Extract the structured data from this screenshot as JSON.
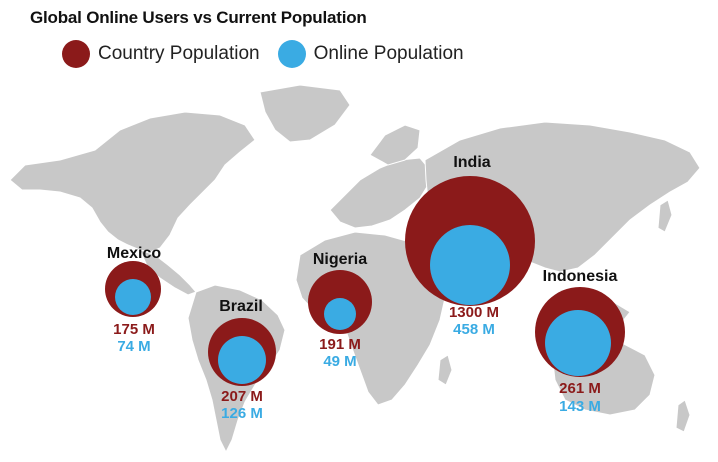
{
  "title": "Global Online Users vs Current Population",
  "legend": [
    {
      "label": "Country Population",
      "color": "#8B1A1A"
    },
    {
      "label": "Online Population",
      "color": "#3AABE3"
    }
  ],
  "colors": {
    "land": "#C8C8C8",
    "country_population": "#8B1A1A",
    "online_population": "#3AABE3"
  },
  "countries": [
    {
      "name": "Mexico",
      "population": "175 M",
      "online": "74 M"
    },
    {
      "name": "Brazil",
      "population": "207 M",
      "online": "126 M"
    },
    {
      "name": "Nigeria",
      "population": "191 M",
      "online": "49 M"
    },
    {
      "name": "India",
      "population": "1300 M",
      "online": "458 M"
    },
    {
      "name": "Indonesia",
      "population": "261 M",
      "online": "143 M"
    }
  ]
}
